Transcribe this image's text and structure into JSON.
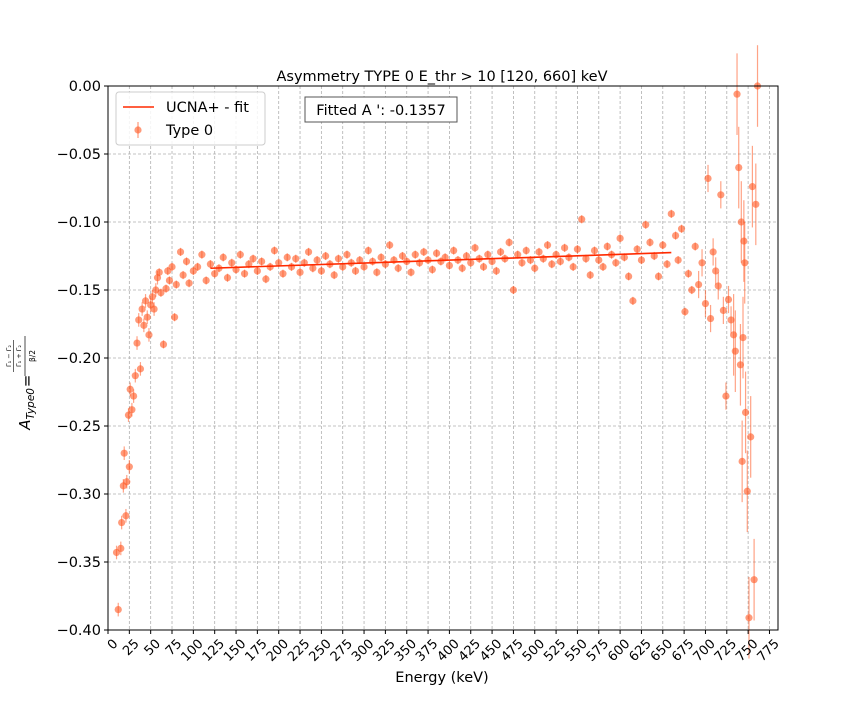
{
  "chart_data": {
    "type": "scatter",
    "title": "Asymmetry TYPE 0 E_thr > 10 [120, 660] keV",
    "xlabel": "Energy (keV)",
    "ylabel": "A_Type0 = (Γ1−Γ2)/(Γ1+Γ2) / (β/2)",
    "ylabel_parts": {
      "main": "A",
      "sub": "Type0",
      "eq": "=",
      "num_top": "Γ₁ − Γ₂",
      "num_bottom": "Γ₁ + Γ₂",
      "den": "β/2"
    },
    "xlim": [
      0,
      785
    ],
    "ylim": [
      -0.4,
      0.0
    ],
    "grid": true,
    "legend_location": "upper-left",
    "x_ticks": [
      0,
      25,
      50,
      75,
      100,
      125,
      150,
      175,
      200,
      225,
      250,
      275,
      300,
      325,
      350,
      375,
      400,
      425,
      450,
      475,
      500,
      525,
      550,
      575,
      600,
      625,
      650,
      675,
      700,
      725,
      750,
      775
    ],
    "x_tick_labels": [
      "0",
      "25",
      "50",
      "75",
      "100",
      "125",
      "150",
      "175",
      "200",
      "225",
      "250",
      "275",
      "300",
      "325",
      "350",
      "375",
      "400",
      "425",
      "450",
      "475",
      "500",
      "525",
      "550",
      "575",
      "600",
      "625",
      "650",
      "675",
      "700",
      "725",
      "750",
      "775"
    ],
    "y_ticks": [
      0.0,
      -0.05,
      -0.1,
      -0.15,
      -0.2,
      -0.25,
      -0.3,
      -0.35,
      -0.4
    ],
    "y_tick_labels": [
      "0.00",
      "−0.05",
      "−0.10",
      "−0.15",
      "−0.20",
      "−0.25",
      "−0.30",
      "−0.35",
      "−0.40"
    ],
    "annotation": "Fitted A ': -0.1357",
    "series": [
      {
        "name": "Type 0",
        "kind": "scatter-errorbar",
        "color": "#ff5722",
        "points": [
          [
            10,
            -0.343
          ],
          [
            12,
            -0.385
          ],
          [
            15,
            -0.34
          ],
          [
            16,
            -0.321
          ],
          [
            18,
            -0.294
          ],
          [
            19,
            -0.27
          ],
          [
            21,
            -0.316
          ],
          [
            22,
            -0.291
          ],
          [
            24,
            -0.242
          ],
          [
            25,
            -0.28
          ],
          [
            26,
            -0.223
          ],
          [
            28,
            -0.238
          ],
          [
            30,
            -0.228
          ],
          [
            32,
            -0.213
          ],
          [
            34,
            -0.189
          ],
          [
            36,
            -0.172
          ],
          [
            38,
            -0.208
          ],
          [
            40,
            -0.164
          ],
          [
            42,
            -0.176
          ],
          [
            44,
            -0.158
          ],
          [
            46,
            -0.17
          ],
          [
            48,
            -0.183
          ],
          [
            50,
            -0.161
          ],
          [
            52,
            -0.155
          ],
          [
            54,
            -0.164
          ],
          [
            56,
            -0.15
          ],
          [
            58,
            -0.141
          ],
          [
            60,
            -0.137
          ],
          [
            62,
            -0.152
          ],
          [
            65,
            -0.19
          ],
          [
            68,
            -0.149
          ],
          [
            70,
            -0.136
          ],
          [
            72,
            -0.143
          ],
          [
            75,
            -0.133
          ],
          [
            78,
            -0.17
          ],
          [
            80,
            -0.146
          ],
          [
            85,
            -0.122
          ],
          [
            88,
            -0.139
          ],
          [
            92,
            -0.129
          ],
          [
            95,
            -0.145
          ],
          [
            100,
            -0.136
          ],
          [
            105,
            -0.133
          ],
          [
            110,
            -0.124
          ],
          [
            115,
            -0.143
          ],
          [
            120,
            -0.131
          ],
          [
            125,
            -0.138
          ],
          [
            130,
            -0.134
          ],
          [
            135,
            -0.126
          ],
          [
            140,
            -0.141
          ],
          [
            145,
            -0.13
          ],
          [
            150,
            -0.135
          ],
          [
            155,
            -0.124
          ],
          [
            160,
            -0.138
          ],
          [
            165,
            -0.131
          ],
          [
            170,
            -0.127
          ],
          [
            175,
            -0.136
          ],
          [
            180,
            -0.129
          ],
          [
            185,
            -0.142
          ],
          [
            190,
            -0.133
          ],
          [
            195,
            -0.121
          ],
          [
            200,
            -0.13
          ],
          [
            205,
            -0.138
          ],
          [
            210,
            -0.126
          ],
          [
            215,
            -0.133
          ],
          [
            220,
            -0.127
          ],
          [
            225,
            -0.137
          ],
          [
            230,
            -0.13
          ],
          [
            235,
            -0.122
          ],
          [
            240,
            -0.134
          ],
          [
            245,
            -0.128
          ],
          [
            250,
            -0.136
          ],
          [
            255,
            -0.125
          ],
          [
            260,
            -0.131
          ],
          [
            265,
            -0.139
          ],
          [
            270,
            -0.127
          ],
          [
            275,
            -0.133
          ],
          [
            280,
            -0.124
          ],
          [
            285,
            -0.13
          ],
          [
            290,
            -0.136
          ],
          [
            295,
            -0.128
          ],
          [
            300,
            -0.133
          ],
          [
            305,
            -0.121
          ],
          [
            310,
            -0.129
          ],
          [
            315,
            -0.137
          ],
          [
            320,
            -0.126
          ],
          [
            325,
            -0.131
          ],
          [
            330,
            -0.117
          ],
          [
            335,
            -0.128
          ],
          [
            340,
            -0.134
          ],
          [
            345,
            -0.125
          ],
          [
            350,
            -0.129
          ],
          [
            355,
            -0.137
          ],
          [
            360,
            -0.124
          ],
          [
            365,
            -0.13
          ],
          [
            370,
            -0.122
          ],
          [
            375,
            -0.128
          ],
          [
            380,
            -0.135
          ],
          [
            385,
            -0.123
          ],
          [
            390,
            -0.129
          ],
          [
            395,
            -0.126
          ],
          [
            400,
            -0.132
          ],
          [
            405,
            -0.121
          ],
          [
            410,
            -0.128
          ],
          [
            415,
            -0.134
          ],
          [
            420,
            -0.125
          ],
          [
            425,
            -0.13
          ],
          [
            430,
            -0.119
          ],
          [
            435,
            -0.127
          ],
          [
            440,
            -0.133
          ],
          [
            445,
            -0.124
          ],
          [
            450,
            -0.129
          ],
          [
            455,
            -0.136
          ],
          [
            460,
            -0.122
          ],
          [
            465,
            -0.127
          ],
          [
            470,
            -0.115
          ],
          [
            475,
            -0.15
          ],
          [
            480,
            -0.124
          ],
          [
            485,
            -0.13
          ],
          [
            490,
            -0.121
          ],
          [
            495,
            -0.128
          ],
          [
            500,
            -0.134
          ],
          [
            505,
            -0.122
          ],
          [
            510,
            -0.127
          ],
          [
            515,
            -0.117
          ],
          [
            520,
            -0.131
          ],
          [
            525,
            -0.124
          ],
          [
            530,
            -0.129
          ],
          [
            535,
            -0.119
          ],
          [
            540,
            -0.126
          ],
          [
            545,
            -0.133
          ],
          [
            550,
            -0.12
          ],
          [
            555,
            -0.098
          ],
          [
            560,
            -0.127
          ],
          [
            565,
            -0.139
          ],
          [
            570,
            -0.121
          ],
          [
            575,
            -0.128
          ],
          [
            580,
            -0.133
          ],
          [
            585,
            -0.118
          ],
          [
            590,
            -0.124
          ],
          [
            595,
            -0.13
          ],
          [
            600,
            -0.112
          ],
          [
            605,
            -0.126
          ],
          [
            610,
            -0.14
          ],
          [
            615,
            -0.158
          ],
          [
            620,
            -0.12
          ],
          [
            625,
            -0.128
          ],
          [
            630,
            -0.102
          ],
          [
            635,
            -0.115
          ],
          [
            640,
            -0.125
          ],
          [
            645,
            -0.14
          ],
          [
            650,
            -0.117
          ],
          [
            655,
            -0.131
          ],
          [
            660,
            -0.094
          ],
          [
            665,
            -0.11
          ],
          [
            668,
            -0.128
          ],
          [
            672,
            -0.105
          ],
          [
            676,
            -0.166
          ],
          [
            680,
            -0.138
          ],
          [
            684,
            -0.15
          ],
          [
            688,
            -0.118
          ],
          [
            692,
            -0.146
          ],
          [
            696,
            -0.13
          ],
          [
            700,
            -0.16
          ],
          [
            703,
            -0.068
          ],
          [
            706,
            -0.171
          ],
          [
            709,
            -0.122
          ],
          [
            712,
            -0.136
          ],
          [
            715,
            -0.147
          ],
          [
            718,
            -0.08
          ],
          [
            721,
            -0.165
          ],
          [
            724,
            -0.228
          ],
          [
            727,
            -0.157
          ],
          [
            730,
            -0.172
          ],
          [
            733,
            -0.183
          ],
          [
            735,
            -0.195
          ],
          [
            737,
            -0.006
          ],
          [
            739,
            -0.06
          ],
          [
            741,
            -0.205
          ],
          [
            743,
            -0.276
          ],
          [
            745,
            -0.114
          ],
          [
            747,
            -0.24
          ],
          [
            749,
            -0.298
          ],
          [
            751,
            -0.391
          ],
          [
            753,
            -0.258
          ],
          [
            755,
            -0.074
          ],
          [
            757,
            -0.363
          ],
          [
            759,
            -0.087
          ],
          [
            761,
            0.0
          ],
          [
            746,
            -0.13
          ],
          [
            742,
            -0.1
          ],
          [
            744,
            -0.185
          ]
        ]
      },
      {
        "name": "UCNA+ - fit",
        "kind": "line",
        "color": "#ff2a00",
        "x": [
          120,
          660
        ],
        "y": [
          -0.134,
          -0.1225
        ]
      }
    ]
  }
}
